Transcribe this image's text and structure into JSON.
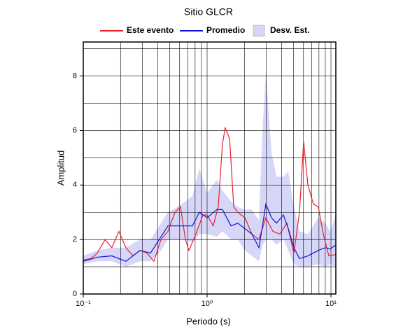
{
  "chart_data": {
    "type": "line",
    "title": "Sitio GLCR",
    "x_label": "Periodo (s)",
    "y_label": "Amplitud",
    "xscale": "log",
    "xlim": [
      0.1,
      10.95
    ],
    "ylim": [
      0,
      9.25
    ],
    "xticks": [
      {
        "value": 0.1,
        "label": "10⁻¹"
      },
      {
        "value": 1,
        "label": "10⁰"
      },
      {
        "value": 10,
        "label": "10¹"
      }
    ],
    "xminorticks": [
      0.2,
      0.3,
      0.4,
      0.5,
      0.6,
      0.7,
      0.8,
      0.9,
      2,
      3,
      4,
      5,
      6,
      7,
      8,
      9
    ],
    "yticks": [
      0,
      2,
      4,
      6,
      8
    ],
    "yminorticks": [
      1,
      3,
      5,
      7,
      9
    ],
    "grid": true,
    "band": {
      "name": "Desv. Est.",
      "color": "#d6d6f8",
      "x": [
        0.1,
        0.13,
        0.17,
        0.221,
        0.287,
        0.349,
        0.424,
        0.483,
        0.626,
        0.761,
        0.866,
        1.0,
        1.2,
        1.33,
        1.56,
        1.77,
        2.02,
        2.3,
        2.62,
        2.8,
        2.98,
        3.31,
        3.63,
        4.13,
        4.52,
        5.02,
        5.57,
        6.51,
        7.91,
        9.01,
        9.87,
        10.95
      ],
      "lower": [
        1.1,
        1.2,
        1.2,
        1.0,
        1.2,
        1.2,
        1.6,
        2.0,
        2.0,
        1.9,
        2.2,
        2.2,
        2.1,
        2.3,
        2.0,
        2.0,
        1.6,
        1.4,
        1.2,
        1.8,
        2.0,
        2.0,
        1.8,
        2.0,
        1.6,
        1.1,
        1.0,
        1.0,
        1.1,
        1.0,
        1.1,
        1.0
      ],
      "upper": [
        1.4,
        1.6,
        1.7,
        1.7,
        2.0,
        2.0,
        2.6,
        3.0,
        3.3,
        3.6,
        4.6,
        3.7,
        4.2,
        3.8,
        3.4,
        3.2,
        3.1,
        3.1,
        2.7,
        6.0,
        8.2,
        5.2,
        4.3,
        4.3,
        4.5,
        3.2,
        2.3,
        2.2,
        2.8,
        2.6,
        2.3,
        2.9
      ]
    },
    "series": [
      {
        "name": "Este evento",
        "color": "#e8202a",
        "x": [
          0.1,
          0.115,
          0.13,
          0.15,
          0.17,
          0.194,
          0.221,
          0.252,
          0.287,
          0.327,
          0.372,
          0.424,
          0.483,
          0.55,
          0.61,
          0.668,
          0.713,
          0.812,
          0.925,
          1.0,
          1.12,
          1.23,
          1.33,
          1.4,
          1.52,
          1.64,
          1.77,
          2.02,
          2.3,
          2.62,
          2.98,
          3.4,
          3.87,
          4.41,
          5.02,
          5.57,
          6.02,
          6.51,
          7.22,
          7.91,
          8.67,
          9.62,
          10.95
        ],
        "values": [
          1.25,
          1.3,
          1.5,
          2.0,
          1.7,
          2.3,
          1.7,
          1.4,
          1.6,
          1.5,
          1.2,
          2.0,
          2.3,
          3.0,
          3.2,
          2.0,
          1.6,
          2.2,
          2.9,
          2.9,
          2.5,
          3.2,
          5.5,
          6.1,
          5.7,
          3.2,
          3.0,
          2.8,
          2.2,
          2.0,
          2.8,
          2.3,
          2.2,
          2.6,
          1.5,
          3.0,
          5.6,
          4.0,
          3.3,
          3.2,
          2.2,
          1.4,
          1.45
        ]
      },
      {
        "name": "Promedio",
        "color": "#1414d8",
        "x": [
          0.1,
          0.13,
          0.17,
          0.221,
          0.287,
          0.349,
          0.424,
          0.483,
          0.626,
          0.761,
          0.866,
          1.0,
          1.2,
          1.33,
          1.56,
          1.77,
          2.02,
          2.3,
          2.62,
          2.8,
          2.98,
          3.31,
          3.63,
          4.13,
          4.52,
          5.02,
          5.57,
          6.51,
          7.91,
          9.01,
          9.87,
          10.95
        ],
        "values": [
          1.2,
          1.35,
          1.4,
          1.2,
          1.6,
          1.5,
          2.1,
          2.5,
          2.5,
          2.5,
          3.0,
          2.8,
          3.1,
          3.1,
          2.5,
          2.6,
          2.4,
          2.2,
          1.7,
          2.5,
          3.3,
          2.8,
          2.6,
          2.9,
          2.4,
          1.7,
          1.3,
          1.4,
          1.6,
          1.7,
          1.65,
          1.8
        ]
      }
    ]
  }
}
